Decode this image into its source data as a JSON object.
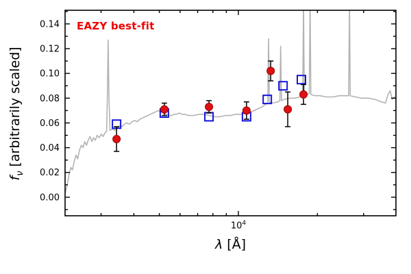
{
  "labels": {
    "annotation": "EAZY best-fit",
    "ylabel_f": "f",
    "ylabel_sub": "ν",
    "ylabel_rest": " [arbitrarily scaled]",
    "xlabel_lambda": "λ",
    "xlabel_rest": " [Å]",
    "xtick_base": "10",
    "xtick_exp": "4"
  },
  "colors": {
    "annotation": "#ee0000",
    "spectrum": "#b3b3b3",
    "model": "#1414dd",
    "observed": "#e01010",
    "observed_edge": "#990000",
    "errorbar": "#000000",
    "frame": "#000000"
  },
  "chart_data": {
    "type": "line+scatter",
    "title": "",
    "annotation": "EAZY best-fit",
    "xlabel": "λ [Å]",
    "ylabel": "f_ν [arbitrarily scaled]",
    "x_scale": "log10",
    "xlim_log10": [
      3.34,
      4.6
    ],
    "ylim": [
      -0.015,
      0.151
    ],
    "yticks": [
      0.0,
      0.02,
      0.04,
      0.06,
      0.08,
      0.1,
      0.12,
      0.14
    ],
    "ytick_labels": [
      "0.00",
      "0.02",
      "0.04",
      "0.06",
      "0.08",
      "0.10",
      "0.12",
      "0.14"
    ],
    "ytick_minor": [
      -0.01,
      0.01,
      0.03,
      0.05,
      0.07,
      0.09,
      0.11,
      0.13,
      0.15
    ],
    "xtick_major_log10": [
      4.0
    ],
    "xtick_major_labels": [
      "10^4"
    ],
    "xtick_minor_log10": [
      3.477,
      3.602,
      3.699,
      3.778,
      3.845,
      3.903,
      3.954,
      4.301,
      4.477
    ],
    "grid": false,
    "legend": "none",
    "series": [
      {
        "name": "EAZY best-fit template spectrum",
        "role": "spectrum",
        "marker": "line",
        "color": "#b3b3b3",
        "points": [
          [
            3.34,
            0.003
          ],
          [
            3.348,
            0.01
          ],
          [
            3.355,
            0.018
          ],
          [
            3.362,
            0.024
          ],
          [
            3.368,
            0.022
          ],
          [
            3.375,
            0.029
          ],
          [
            3.382,
            0.034
          ],
          [
            3.388,
            0.031
          ],
          [
            3.395,
            0.038
          ],
          [
            3.402,
            0.042
          ],
          [
            3.408,
            0.04
          ],
          [
            3.415,
            0.045
          ],
          [
            3.422,
            0.042
          ],
          [
            3.428,
            0.046
          ],
          [
            3.435,
            0.049
          ],
          [
            3.442,
            0.045
          ],
          [
            3.448,
            0.048
          ],
          [
            3.455,
            0.046
          ],
          [
            3.462,
            0.05
          ],
          [
            3.47,
            0.048
          ],
          [
            3.478,
            0.051
          ],
          [
            3.485,
            0.049
          ],
          [
            3.492,
            0.052
          ],
          [
            3.498,
            0.053
          ],
          [
            3.501,
            0.08
          ],
          [
            3.504,
            0.127
          ],
          [
            3.507,
            0.082
          ],
          [
            3.511,
            0.054
          ],
          [
            3.52,
            0.055
          ],
          [
            3.53,
            0.054
          ],
          [
            3.54,
            0.056
          ],
          [
            3.55,
            0.058
          ],
          [
            3.558,
            0.057
          ],
          [
            3.566,
            0.059
          ],
          [
            3.575,
            0.06
          ],
          [
            3.585,
            0.059
          ],
          [
            3.595,
            0.061
          ],
          [
            3.605,
            0.062
          ],
          [
            3.615,
            0.061
          ],
          [
            3.625,
            0.063
          ],
          [
            3.635,
            0.064
          ],
          [
            3.645,
            0.065
          ],
          [
            3.655,
            0.066
          ],
          [
            3.665,
            0.067
          ],
          [
            3.675,
            0.068
          ],
          [
            3.685,
            0.069
          ],
          [
            3.695,
            0.07
          ],
          [
            3.705,
            0.069
          ],
          [
            3.715,
            0.068
          ],
          [
            3.725,
            0.067
          ],
          [
            3.735,
            0.066
          ],
          [
            3.745,
            0.066
          ],
          [
            3.755,
            0.067
          ],
          [
            3.765,
            0.067
          ],
          [
            3.775,
            0.068
          ],
          [
            3.785,
            0.067
          ],
          [
            3.795,
            0.067
          ],
          [
            3.81,
            0.066
          ],
          [
            3.83,
            0.066
          ],
          [
            3.85,
            0.067
          ],
          [
            3.87,
            0.067
          ],
          [
            3.89,
            0.066
          ],
          [
            3.91,
            0.065
          ],
          [
            3.93,
            0.065
          ],
          [
            3.95,
            0.066
          ],
          [
            3.97,
            0.066
          ],
          [
            3.99,
            0.067
          ],
          [
            4.01,
            0.067
          ],
          [
            4.03,
            0.068
          ],
          [
            4.05,
            0.069
          ],
          [
            4.07,
            0.071
          ],
          [
            4.09,
            0.073
          ],
          [
            4.105,
            0.075
          ],
          [
            4.112,
            0.076
          ],
          [
            4.115,
            0.128
          ],
          [
            4.118,
            0.077
          ],
          [
            4.13,
            0.076
          ],
          [
            4.15,
            0.077
          ],
          [
            4.158,
            0.078
          ],
          [
            4.161,
            0.122
          ],
          [
            4.164,
            0.078
          ],
          [
            4.175,
            0.079
          ],
          [
            4.195,
            0.08
          ],
          [
            4.215,
            0.08
          ],
          [
            4.235,
            0.081
          ],
          [
            4.245,
            0.082
          ],
          [
            4.248,
            0.158
          ],
          [
            4.251,
            0.082
          ],
          [
            4.262,
            0.083
          ],
          [
            4.27,
            0.084
          ],
          [
            4.273,
            0.158
          ],
          [
            4.276,
            0.083
          ],
          [
            4.29,
            0.082
          ],
          [
            4.31,
            0.082
          ],
          [
            4.335,
            0.081
          ],
          [
            4.36,
            0.081
          ],
          [
            4.385,
            0.082
          ],
          [
            4.405,
            0.082
          ],
          [
            4.42,
            0.082
          ],
          [
            4.423,
            0.158
          ],
          [
            4.426,
            0.082
          ],
          [
            4.445,
            0.081
          ],
          [
            4.47,
            0.08
          ],
          [
            4.495,
            0.08
          ],
          [
            4.52,
            0.079
          ],
          [
            4.545,
            0.077
          ],
          [
            4.56,
            0.076
          ],
          [
            4.57,
            0.083
          ],
          [
            4.578,
            0.086
          ],
          [
            4.586,
            0.079
          ],
          [
            4.594,
            0.081
          ],
          [
            4.6,
            0.08
          ]
        ]
      },
      {
        "name": "model photometry",
        "role": "model",
        "marker": "open-square",
        "color": "#1414dd",
        "x_log10": [
          3.536,
          3.718,
          3.888,
          4.031,
          4.11,
          4.17,
          4.24
        ],
        "y": [
          0.059,
          0.068,
          0.065,
          0.065,
          0.079,
          0.09,
          0.095
        ]
      },
      {
        "name": "observed photometry",
        "role": "observed",
        "marker": "filled-circle",
        "color": "#e01010",
        "x_log10": [
          3.536,
          3.718,
          3.888,
          4.031,
          4.123,
          4.188,
          4.248
        ],
        "y": [
          0.047,
          0.071,
          0.073,
          0.07,
          0.102,
          0.071,
          0.083
        ],
        "yerr": [
          0.01,
          0.005,
          0.005,
          0.007,
          0.008,
          0.014,
          0.008
        ]
      }
    ]
  }
}
